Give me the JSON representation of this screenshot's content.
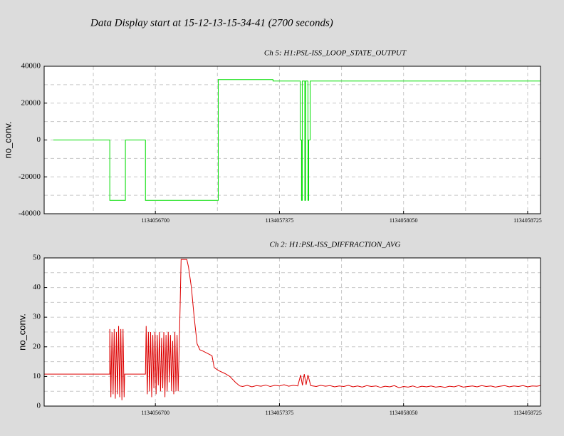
{
  "title": "Data Display start at 15-12-13-15-34-41 (2700 seconds)",
  "chart_data": [
    {
      "type": "line",
      "title": "Ch 5: H1:PSL-ISS_LOOP_STATE_OUTPUT",
      "ylabel": "no_conv.",
      "color": "#00dd00",
      "xlim": [
        1134056095,
        1134058795
      ],
      "xticks": [
        1134056700,
        1134057375,
        1134058050,
        1134058725
      ],
      "ylim": [
        -40000,
        40000
      ],
      "yticks": [
        40000,
        20000,
        0,
        -20000,
        -40000
      ],
      "grid_x": [
        1134056362.5,
        1134056700,
        1134057037.5,
        1134057375,
        1134057712.5,
        1134058050,
        1134058387.5,
        1134058725
      ],
      "grid_y": [
        30000,
        20000,
        10000,
        0,
        -10000,
        -20000,
        -30000
      ],
      "x": [
        1134056145,
        1134056452,
        1134056452,
        1134056537,
        1134056537,
        1134056646,
        1134056646,
        1134057042,
        1134057042,
        1134057340,
        1134057340,
        1134057488,
        1134057488,
        1134057495,
        1134057495,
        1134057499,
        1134057499,
        1134057513,
        1134057513,
        1134057517,
        1134057517,
        1134057530,
        1134057530,
        1134057534,
        1134057534,
        1134057542,
        1134057542,
        1134058795
      ],
      "values": [
        0,
        0,
        -32768,
        -32768,
        0,
        0,
        -32768,
        -32768,
        32768,
        32768,
        32000,
        32000,
        0,
        0,
        -32768,
        -32768,
        32000,
        32000,
        -32768,
        -32768,
        32000,
        32000,
        -32768,
        -32768,
        0,
        0,
        32000,
        32000
      ]
    },
    {
      "type": "line",
      "title": "Ch 2: H1:PSL-ISS_DIFFRACTION_AVG",
      "ylabel": "no_conv.",
      "color": "#dd0000",
      "xlim": [
        1134056095,
        1134058795
      ],
      "xticks": [
        1134056700,
        1134057375,
        1134058050,
        1134058725
      ],
      "ylim": [
        0,
        50
      ],
      "yticks": [
        50,
        40,
        30,
        20,
        10,
        0
      ],
      "grid_x": [
        1134056362.5,
        1134056700,
        1134057037.5,
        1134057375,
        1134057712.5,
        1134058050,
        1134058387.5,
        1134058725
      ],
      "grid_y": [
        45,
        40,
        35,
        30,
        25,
        20,
        15,
        10,
        5
      ],
      "x": [
        1134056095,
        1134056452,
        1134056452,
        1134056458,
        1134056464,
        1134056470,
        1134056476,
        1134056482,
        1134056488,
        1134056494,
        1134056500,
        1134056506,
        1134056512,
        1134056518,
        1134056524,
        1134056530,
        1134056533,
        1134056646,
        1134056650,
        1134056656,
        1134056662,
        1134056668,
        1134056674,
        1134056680,
        1134056686,
        1134056692,
        1134056698,
        1134056704,
        1134056710,
        1134056716,
        1134056722,
        1134056728,
        1134056734,
        1134056740,
        1134056746,
        1134056752,
        1134056758,
        1134056764,
        1134056770,
        1134056776,
        1134056782,
        1134056788,
        1134056794,
        1134056800,
        1134056806,
        1134056812,
        1134056818,
        1134056824,
        1134056832,
        1134056840,
        1134056871,
        1134056880,
        1134056896,
        1134056911,
        1134056927,
        1134056942,
        1134056961,
        1134057008,
        1134057020,
        1134057043,
        1134057078,
        1134057105,
        1134057136,
        1134057159,
        1134057175,
        1134057200,
        1134057225,
        1134057250,
        1134057275,
        1134057300,
        1134057325,
        1134057350,
        1134057375,
        1134057400,
        1134057425,
        1134057450,
        1134057475,
        1134057490,
        1134057500,
        1134057510,
        1134057520,
        1134057530,
        1134057545,
        1134057575,
        1134057600,
        1134057625,
        1134057650,
        1134057675,
        1134057700,
        1134057725,
        1134057750,
        1134057775,
        1134057800,
        1134057825,
        1134057850,
        1134057875,
        1134057900,
        1134057925,
        1134057950,
        1134057975,
        1134058000,
        1134058025,
        1134058050,
        1134058075,
        1134058100,
        1134058125,
        1134058150,
        1134058175,
        1134058200,
        1134058225,
        1134058250,
        1134058275,
        1134058300,
        1134058325,
        1134058350,
        1134058375,
        1134058400,
        1134058425,
        1134058450,
        1134058475,
        1134058500,
        1134058525,
        1134058550,
        1134058575,
        1134058600,
        1134058625,
        1134058650,
        1134058675,
        1134058700,
        1134058725,
        1134058750,
        1134058775,
        1134058795
      ],
      "values": [
        10.8,
        10.8,
        26,
        3,
        25,
        4,
        26,
        2.5,
        25,
        4,
        27,
        3,
        26,
        2,
        26,
        3,
        10.8,
        10.8,
        27,
        4,
        25,
        5,
        25,
        3,
        24,
        6,
        25,
        4,
        24,
        7,
        25,
        5,
        23,
        6,
        25,
        3,
        24,
        5,
        25,
        8,
        24,
        5,
        22,
        4,
        25,
        5,
        24,
        5,
        26,
        49.5,
        49.5,
        47,
        40,
        30,
        21,
        19,
        18.5,
        17,
        13,
        12,
        11,
        10,
        8,
        6.8,
        6.6,
        7.0,
        6.5,
        6.9,
        6.7,
        7.1,
        6.6,
        7.0,
        6.8,
        7.2,
        6.7,
        7.0,
        6.8,
        10.5,
        7.0,
        10.8,
        7.2,
        10.5,
        6.9,
        6.6,
        7.0,
        6.7,
        6.9,
        6.5,
        6.8,
        6.6,
        7.0,
        6.5,
        6.8,
        6.4,
        6.9,
        6.6,
        6.8,
        6.3,
        6.7,
        6.5,
        6.9,
        6.2,
        6.6,
        6.4,
        6.8,
        6.3,
        6.7,
        6.5,
        6.8,
        6.4,
        6.6,
        6.3,
        6.7,
        6.5,
        6.9,
        6.4,
        6.6,
        6.8,
        6.5,
        6.9,
        6.6,
        6.8,
        6.4,
        6.7,
        6.9,
        6.5,
        6.8,
        6.6,
        6.9,
        6.5,
        6.8,
        6.7,
        6.9
      ]
    }
  ]
}
